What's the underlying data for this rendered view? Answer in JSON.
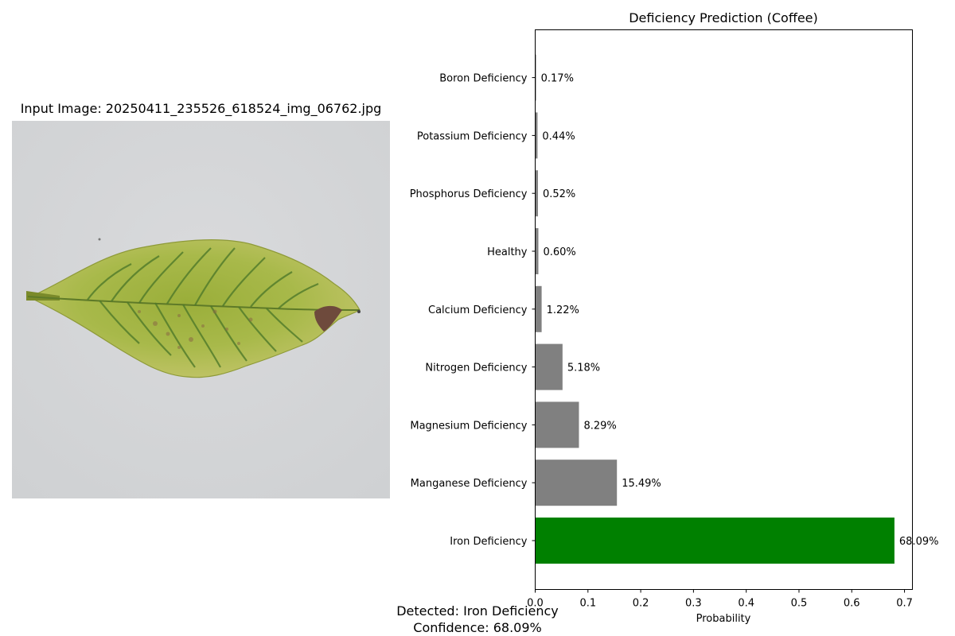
{
  "input_image": {
    "title": "Input Image: 20250411_235526_618524_img_06762.jpg"
  },
  "summary": {
    "detected": "Detected: Iron Deficiency",
    "confidence": "Confidence: 68.09%"
  },
  "colors": {
    "top_prediction": "#008000",
    "other": "#808080"
  },
  "chart_data": {
    "type": "bar",
    "orientation": "horizontal",
    "title": "Deficiency Prediction (Coffee)",
    "xlabel": "Probability",
    "ylabel": "",
    "xlim": [
      0,
      0.715
    ],
    "xticks": [
      "0.0",
      "0.1",
      "0.2",
      "0.3",
      "0.4",
      "0.5",
      "0.6",
      "0.7"
    ],
    "grid": false,
    "categories": [
      "Iron Deficiency",
      "Manganese Deficiency",
      "Magnesium Deficiency",
      "Nitrogen Deficiency",
      "Calcium Deficiency",
      "Healthy",
      "Phosphorus Deficiency",
      "Potassium Deficiency",
      "Boron Deficiency"
    ],
    "values": [
      0.6809,
      0.1549,
      0.0829,
      0.0518,
      0.0122,
      0.006,
      0.0052,
      0.0044,
      0.0017
    ],
    "value_labels": [
      "68.09%",
      "15.49%",
      "8.29%",
      "5.18%",
      "1.22%",
      "0.60%",
      "0.52%",
      "0.44%",
      "0.17%"
    ]
  }
}
